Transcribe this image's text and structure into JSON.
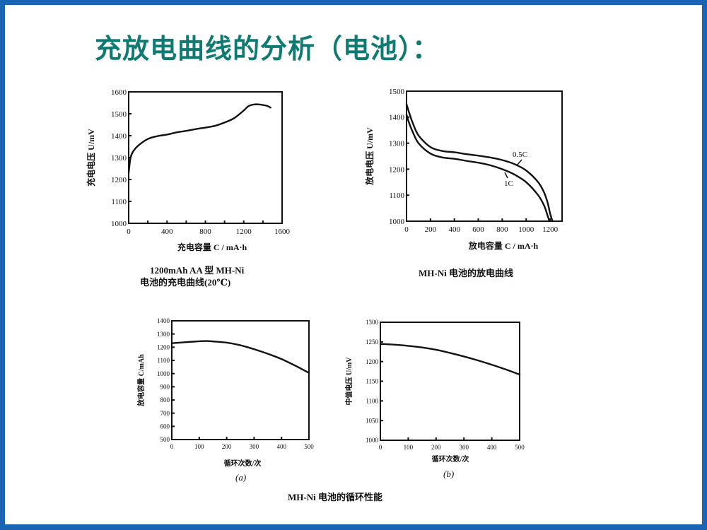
{
  "slide": {
    "title": "充放电曲线的分析（电池）：",
    "border_color": "#1a64b4",
    "title_color": "#0e7a72"
  },
  "captions": {
    "chart1_line1": "1200mAh AA 型 MH-Ni",
    "chart1_line2": "电池的充电曲线(20℃)",
    "chart2": "MH-Ni 电池的放电曲线",
    "chart3_sub": "(a)",
    "chart4_sub": "(b)",
    "bottom": "MH-Ni 电池的循环性能"
  },
  "chart_data": [
    {
      "type": "line",
      "title": "1200mAh AA 型 MH-Ni 电池的充电曲线(20℃)",
      "xlabel": "充电容量 C / mA·h",
      "ylabel": "充电电压 U/mV",
      "xlim": [
        0,
        1600
      ],
      "ylim": [
        1000,
        1600
      ],
      "xticks": [
        "0",
        "400",
        "800",
        "1200",
        "1600"
      ],
      "yticks": [
        "1000",
        "1100",
        "1200",
        "1300",
        "1400",
        "1500",
        "1600"
      ],
      "grid": false,
      "series": [
        {
          "name": "charge",
          "x": [
            0,
            20,
            50,
            100,
            200,
            300,
            400,
            500,
            600,
            700,
            800,
            900,
            1000,
            1100,
            1200,
            1250,
            1300,
            1350,
            1400,
            1450,
            1480
          ],
          "y": [
            1230,
            1300,
            1330,
            1355,
            1385,
            1398,
            1405,
            1415,
            1422,
            1430,
            1437,
            1445,
            1460,
            1480,
            1515,
            1535,
            1542,
            1543,
            1540,
            1535,
            1528
          ]
        }
      ]
    },
    {
      "type": "line",
      "title": "MH-Ni 电池的放电曲线",
      "xlabel": "放电容量 C / mA·h",
      "ylabel": "放电电压 U/mV",
      "xlim": [
        0,
        1300
      ],
      "ylim": [
        1000,
        1500
      ],
      "xticks": [
        "0",
        "200",
        "400",
        "600",
        "800",
        "1000",
        "1200"
      ],
      "yticks": [
        "1000",
        "1100",
        "1200",
        "1300",
        "1400",
        "1500"
      ],
      "grid": false,
      "annotations": [
        "0.5C",
        "1C"
      ],
      "series": [
        {
          "name": "0.5C",
          "x": [
            0,
            20,
            50,
            100,
            200,
            300,
            400,
            500,
            600,
            700,
            800,
            900,
            1000,
            1100,
            1150,
            1180,
            1200,
            1220
          ],
          "y": [
            1450,
            1420,
            1380,
            1330,
            1285,
            1270,
            1265,
            1258,
            1252,
            1245,
            1235,
            1220,
            1195,
            1150,
            1110,
            1070,
            1030,
            1000
          ]
        },
        {
          "name": "1C",
          "x": [
            0,
            20,
            50,
            100,
            200,
            300,
            400,
            500,
            600,
            700,
            800,
            900,
            1000,
            1100,
            1150,
            1180,
            1195
          ],
          "y": [
            1410,
            1380,
            1345,
            1300,
            1260,
            1245,
            1240,
            1232,
            1225,
            1215,
            1200,
            1180,
            1150,
            1100,
            1060,
            1020,
            1000
          ]
        }
      ]
    },
    {
      "type": "line",
      "title": "MH-Ni 电池的循环性能 (a)",
      "xlabel": "循环次数/次",
      "ylabel": "放电容量 C/mAh",
      "xlim": [
        0,
        500
      ],
      "ylim": [
        500,
        1400
      ],
      "xticks": [
        "0",
        "100",
        "200",
        "300",
        "400",
        "500"
      ],
      "yticks": [
        "500",
        "600",
        "700",
        "800",
        "900",
        "1000",
        "1100",
        "1200",
        "1300",
        "1400"
      ],
      "grid": false,
      "series": [
        {
          "name": "capacity",
          "x": [
            0,
            50,
            100,
            125,
            150,
            200,
            250,
            300,
            350,
            400,
            450,
            500
          ],
          "y": [
            1230,
            1238,
            1245,
            1247,
            1244,
            1235,
            1215,
            1185,
            1150,
            1110,
            1060,
            1005
          ]
        }
      ]
    },
    {
      "type": "line",
      "title": "MH-Ni 电池的循环性能 (b)",
      "xlabel": "循环次数/次",
      "ylabel": "中值电压 U/mV",
      "xlim": [
        0,
        500
      ],
      "ylim": [
        1000,
        1300
      ],
      "xticks": [
        "0",
        "100",
        "200",
        "300",
        "400",
        "500"
      ],
      "yticks": [
        "1000",
        "1050",
        "1100",
        "1150",
        "1200",
        "1250",
        "1300"
      ],
      "grid": false,
      "series": [
        {
          "name": "median voltage",
          "x": [
            0,
            50,
            100,
            150,
            200,
            250,
            300,
            350,
            400,
            450,
            500
          ],
          "y": [
            1245,
            1243,
            1240,
            1236,
            1230,
            1222,
            1213,
            1203,
            1192,
            1180,
            1167
          ]
        }
      ]
    }
  ]
}
